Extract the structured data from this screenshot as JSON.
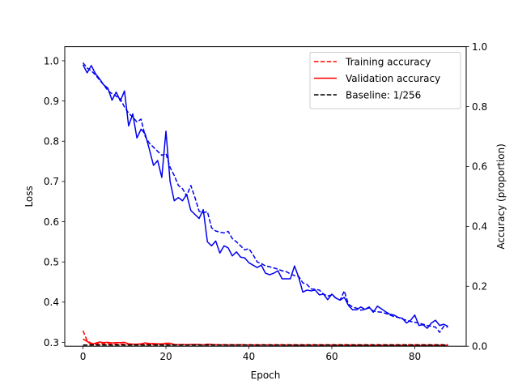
{
  "chart_data": {
    "type": "line",
    "title": "",
    "xlabel": "Epoch",
    "ylabel_left": "Loss",
    "ylabel_right": "Accuracy (proportion)",
    "xlim": [
      -4.4,
      92.4
    ],
    "ylim_left": [
      0.2905,
      1.035
    ],
    "ylim_right": [
      0.0,
      1.0
    ],
    "xticks": [
      "0",
      "20",
      "40",
      "60",
      "80"
    ],
    "xtick_values": [
      0,
      20,
      40,
      60,
      80
    ],
    "yticks_left": [
      "0.3",
      "0.4",
      "0.5",
      "0.6",
      "0.7",
      "0.8",
      "0.9",
      "1.0"
    ],
    "ytick_left_values": [
      0.3,
      0.4,
      0.5,
      0.6,
      0.7,
      0.8,
      0.9,
      1.0
    ],
    "yticks_right": [
      "0.0",
      "0.2",
      "0.4",
      "0.6",
      "0.8",
      "1.0"
    ],
    "ytick_right_values": [
      0.0,
      0.2,
      0.4,
      0.6,
      0.8,
      1.0
    ],
    "legend_position": "top-right",
    "grid": false,
    "x": [
      0,
      1,
      2,
      3,
      4,
      5,
      6,
      7,
      8,
      9,
      10,
      11,
      12,
      13,
      14,
      15,
      16,
      17,
      18,
      19,
      20,
      21,
      22,
      23,
      24,
      25,
      26,
      27,
      28,
      29,
      30,
      31,
      32,
      33,
      34,
      35,
      36,
      37,
      38,
      39,
      40,
      41,
      42,
      43,
      44,
      45,
      46,
      47,
      48,
      49,
      50,
      51,
      52,
      53,
      54,
      55,
      56,
      57,
      58,
      59,
      60,
      61,
      62,
      63,
      64,
      65,
      66,
      67,
      68,
      69,
      70,
      71,
      72,
      73,
      74,
      75,
      76,
      77,
      78,
      79,
      80,
      81,
      82,
      83,
      84,
      85,
      86,
      87,
      88
    ],
    "series": [
      {
        "name": "",
        "axis": "left",
        "color": "#0000ee",
        "dash": "dashed",
        "values": [
          0.995,
          0.982,
          0.975,
          0.965,
          0.952,
          0.94,
          0.926,
          0.918,
          0.912,
          0.905,
          0.885,
          0.87,
          0.86,
          0.848,
          0.855,
          0.812,
          0.795,
          0.785,
          0.775,
          0.765,
          0.77,
          0.735,
          0.715,
          0.69,
          0.682,
          0.664,
          0.69,
          0.66,
          0.626,
          0.622,
          0.625,
          0.585,
          0.577,
          0.574,
          0.572,
          0.576,
          0.558,
          0.55,
          0.54,
          0.53,
          0.533,
          0.518,
          0.5,
          0.496,
          0.49,
          0.488,
          0.485,
          0.482,
          0.478,
          0.476,
          0.47,
          0.466,
          0.464,
          0.448,
          0.444,
          0.433,
          0.432,
          0.43,
          0.42,
          0.415,
          0.418,
          0.41,
          0.405,
          0.428,
          0.395,
          0.388,
          0.385,
          0.38,
          0.382,
          0.386,
          0.378,
          0.376,
          0.375,
          0.372,
          0.368,
          0.364,
          0.362,
          0.358,
          0.355,
          0.352,
          0.35,
          0.348,
          0.345,
          0.342,
          0.34,
          0.338,
          0.325,
          0.34,
          0.338
        ]
      },
      {
        "name": "",
        "axis": "left",
        "color": "#0000ee",
        "dash": "solid",
        "values": [
          0.99,
          0.97,
          0.988,
          0.968,
          0.955,
          0.94,
          0.932,
          0.902,
          0.922,
          0.9,
          0.925,
          0.838,
          0.868,
          0.808,
          0.83,
          0.818,
          0.78,
          0.74,
          0.752,
          0.71,
          0.825,
          0.7,
          0.652,
          0.66,
          0.652,
          0.668,
          0.628,
          0.618,
          0.608,
          0.63,
          0.55,
          0.54,
          0.552,
          0.522,
          0.54,
          0.535,
          0.515,
          0.525,
          0.512,
          0.51,
          0.498,
          0.492,
          0.486,
          0.492,
          0.472,
          0.468,
          0.472,
          0.478,
          0.458,
          0.458,
          0.458,
          0.49,
          0.462,
          0.425,
          0.43,
          0.428,
          0.43,
          0.418,
          0.42,
          0.406,
          0.42,
          0.41,
          0.405,
          0.412,
          0.392,
          0.381,
          0.381,
          0.388,
          0.382,
          0.388,
          0.375,
          0.39,
          0.383,
          0.376,
          0.37,
          0.368,
          0.362,
          0.36,
          0.348,
          0.355,
          0.368,
          0.342,
          0.344,
          0.335,
          0.348,
          0.355,
          0.342,
          0.345,
          0.34
        ]
      },
      {
        "name": "Training accuracy",
        "axis": "right",
        "color": "#ff0000",
        "dash": "dashed",
        "values": [
          0.052,
          0.018,
          0.01,
          0.008,
          0.008,
          0.008,
          0.008,
          0.007,
          0.007,
          0.007,
          0.007,
          0.007,
          0.006,
          0.006,
          0.006,
          0.006,
          0.006,
          0.006,
          0.006,
          0.006,
          0.006,
          0.005,
          0.005,
          0.005,
          0.005,
          0.005,
          0.005,
          0.005,
          0.005,
          0.005,
          0.005,
          0.005,
          0.005,
          0.005,
          0.005,
          0.005,
          0.005,
          0.005,
          0.005,
          0.005,
          0.005,
          0.005,
          0.005,
          0.005,
          0.005,
          0.005,
          0.005,
          0.005,
          0.005,
          0.005,
          0.005,
          0.005,
          0.005,
          0.005,
          0.005,
          0.005,
          0.005,
          0.005,
          0.005,
          0.005,
          0.005,
          0.005,
          0.005,
          0.005,
          0.005,
          0.005,
          0.005,
          0.005,
          0.005,
          0.005,
          0.005,
          0.005,
          0.005,
          0.005,
          0.005,
          0.005,
          0.005,
          0.005,
          0.005,
          0.005,
          0.005,
          0.005,
          0.005,
          0.005,
          0.005,
          0.005,
          0.005,
          0.005,
          0.005
        ]
      },
      {
        "name": "Validation accuracy",
        "axis": "right",
        "color": "#ff0000",
        "dash": "solid",
        "values": [
          0.024,
          0.016,
          0.006,
          0.01,
          0.014,
          0.012,
          0.013,
          0.011,
          0.012,
          0.012,
          0.013,
          0.008,
          0.007,
          0.007,
          0.008,
          0.011,
          0.009,
          0.009,
          0.008,
          0.008,
          0.01,
          0.01,
          0.006,
          0.005,
          0.006,
          0.005,
          0.006,
          0.006,
          0.006,
          0.004,
          0.007,
          0.006,
          0.005,
          0.004,
          0.005,
          0.004,
          0.005,
          0.004,
          0.005,
          0.004,
          0.004,
          0.004,
          0.003,
          0.004,
          0.004,
          0.004,
          0.003,
          0.004,
          0.004,
          0.003,
          0.004,
          0.003,
          0.003,
          0.003,
          0.004,
          0.003,
          0.004,
          0.003,
          0.003,
          0.004,
          0.003,
          0.003,
          0.002,
          0.003,
          0.003,
          0.002,
          0.003,
          0.002,
          0.003,
          0.002,
          0.002,
          0.002,
          0.002,
          0.002,
          0.002,
          0.002,
          0.002,
          0.002,
          0.002,
          0.002,
          0.002,
          0.002,
          0.002,
          0.002,
          0.002,
          0.002,
          0.002,
          0.002,
          0.002
        ]
      },
      {
        "name": "Baseline: 1/256",
        "axis": "right",
        "color": "#000000",
        "dash": "dashed",
        "values": [
          0.0039,
          0.0039,
          0.0039,
          0.0039,
          0.0039,
          0.0039,
          0.0039,
          0.0039,
          0.0039,
          0.0039,
          0.0039,
          0.0039,
          0.0039,
          0.0039,
          0.0039,
          0.0039,
          0.0039,
          0.0039,
          0.0039,
          0.0039,
          0.0039,
          0.0039,
          0.0039,
          0.0039,
          0.0039,
          0.0039,
          0.0039,
          0.0039,
          0.0039,
          0.0039,
          0.0039,
          0.0039,
          0.0039,
          0.0039,
          0.0039,
          0.0039,
          0.0039,
          0.0039,
          0.0039,
          0.0039,
          0.0039,
          0.0039,
          0.0039,
          0.0039,
          0.0039,
          0.0039,
          0.0039,
          0.0039,
          0.0039,
          0.0039,
          0.0039,
          0.0039,
          0.0039,
          0.0039,
          0.0039,
          0.0039,
          0.0039,
          0.0039,
          0.0039,
          0.0039,
          0.0039,
          0.0039,
          0.0039,
          0.0039,
          0.0039,
          0.0039,
          0.0039,
          0.0039,
          0.0039,
          0.0039,
          0.0039,
          0.0039,
          0.0039,
          0.0039,
          0.0039,
          0.0039,
          0.0039,
          0.0039,
          0.0039,
          0.0039,
          0.0039,
          0.0039,
          0.0039,
          0.0039,
          0.0039,
          0.0039,
          0.0039,
          0.0039,
          0.0039
        ]
      }
    ]
  }
}
